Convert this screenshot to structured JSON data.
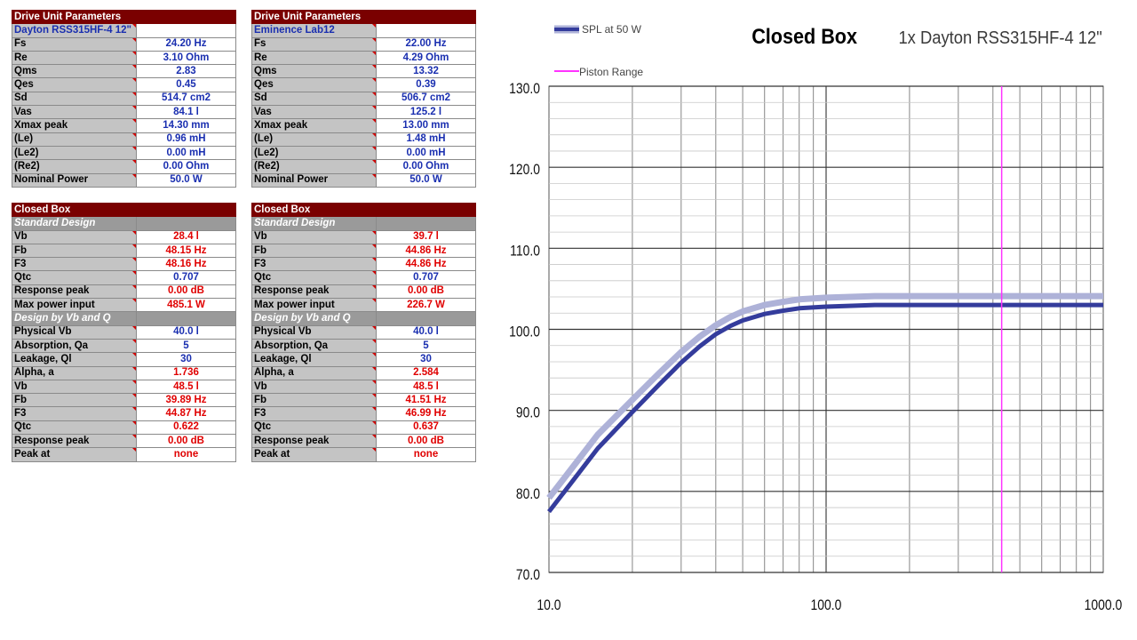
{
  "tables": {
    "du1": {
      "header": "Drive Unit Parameters",
      "name": "Dayton RSS315HF-4 12\"",
      "rows": [
        {
          "label": "Fs",
          "value": "24.20 Hz"
        },
        {
          "label": "Re",
          "value": "3.10 Ohm"
        },
        {
          "label": "Qms",
          "value": "2.83"
        },
        {
          "label": "Qes",
          "value": "0.45"
        },
        {
          "label": "Sd",
          "value": "514.7 cm2"
        },
        {
          "label": "Vas",
          "value": "84.1 l"
        },
        {
          "label": "Xmax peak",
          "value": "14.30 mm"
        },
        {
          "label": "(Le)",
          "value": "0.96 mH"
        },
        {
          "label": "(Le2)",
          "value": "0.00 mH"
        },
        {
          "label": "(Re2)",
          "value": "0.00 Ohm"
        },
        {
          "label": "Nominal Power",
          "value": "50.0 W"
        }
      ]
    },
    "du2": {
      "header": "Drive Unit Parameters",
      "name": "Eminence Lab12",
      "rows": [
        {
          "label": "Fs",
          "value": "22.00 Hz"
        },
        {
          "label": "Re",
          "value": "4.29 Ohm"
        },
        {
          "label": "Qms",
          "value": "13.32"
        },
        {
          "label": "Qes",
          "value": "0.39"
        },
        {
          "label": "Sd",
          "value": "506.7 cm2"
        },
        {
          "label": "Vas",
          "value": "125.2 l"
        },
        {
          "label": "Xmax peak",
          "value": "13.00 mm"
        },
        {
          "label": "(Le)",
          "value": "1.48 mH"
        },
        {
          "label": "(Le2)",
          "value": "0.00 mH"
        },
        {
          "label": "(Re2)",
          "value": "0.00 Ohm"
        },
        {
          "label": "Nominal Power",
          "value": "50.0 W"
        }
      ]
    },
    "cb1": {
      "header": "Closed Box",
      "standard_label": "Standard Design",
      "standard": [
        {
          "label": "Vb",
          "value": "28.4 l",
          "color": "red"
        },
        {
          "label": "Fb",
          "value": "48.15 Hz",
          "color": "red"
        },
        {
          "label": "F3",
          "value": "48.16 Hz",
          "color": "red"
        },
        {
          "label": "Qtc",
          "value": "0.707",
          "color": "blue"
        },
        {
          "label": "Response peak",
          "value": "0.00 dB",
          "color": "red"
        },
        {
          "label": "Max power input",
          "value": "485.1 W",
          "color": "red"
        }
      ],
      "vbq_label": "Design by Vb and Q",
      "vbq": [
        {
          "label": "Physical Vb",
          "value": "40.0 l",
          "color": "blue"
        },
        {
          "label": "Absorption, Qa",
          "value": "5",
          "color": "blue"
        },
        {
          "label": "Leakage, Ql",
          "value": "30",
          "color": "blue"
        },
        {
          "label": "Alpha, a",
          "value": "1.736",
          "color": "red"
        },
        {
          "label": "Vb",
          "value": "48.5 l",
          "color": "red"
        },
        {
          "label": "Fb",
          "value": "39.89 Hz",
          "color": "red"
        },
        {
          "label": "F3",
          "value": "44.87 Hz",
          "color": "red"
        },
        {
          "label": "Qtc",
          "value": "0.622",
          "color": "red"
        },
        {
          "label": "Response peak",
          "value": "0.00 dB",
          "color": "red"
        },
        {
          "label": "Peak at",
          "value": "none",
          "color": "red"
        }
      ]
    },
    "cb2": {
      "header": "Closed Box",
      "standard_label": "Standard Design",
      "standard": [
        {
          "label": "Vb",
          "value": "39.7 l",
          "color": "red"
        },
        {
          "label": "Fb",
          "value": "44.86 Hz",
          "color": "red"
        },
        {
          "label": "F3",
          "value": "44.86 Hz",
          "color": "red"
        },
        {
          "label": "Qtc",
          "value": "0.707",
          "color": "blue"
        },
        {
          "label": "Response peak",
          "value": "0.00 dB",
          "color": "red"
        },
        {
          "label": "Max power input",
          "value": "226.7 W",
          "color": "red"
        }
      ],
      "vbq_label": "Design by Vb and Q",
      "vbq": [
        {
          "label": "Physical Vb",
          "value": "40.0 l",
          "color": "blue"
        },
        {
          "label": "Absorption, Qa",
          "value": "5",
          "color": "blue"
        },
        {
          "label": "Leakage, Ql",
          "value": "30",
          "color": "blue"
        },
        {
          "label": "Alpha, a",
          "value": "2.584",
          "color": "red"
        },
        {
          "label": "Vb",
          "value": "48.5 l",
          "color": "red"
        },
        {
          "label": "Fb",
          "value": "41.51 Hz",
          "color": "red"
        },
        {
          "label": "F3",
          "value": "46.99 Hz",
          "color": "red"
        },
        {
          "label": "Qtc",
          "value": "0.637",
          "color": "red"
        },
        {
          "label": "Response peak",
          "value": "0.00 dB",
          "color": "red"
        },
        {
          "label": "Peak at",
          "value": "none",
          "color": "red"
        }
      ]
    }
  },
  "colors": {
    "header_bg": "#7a0000",
    "label_bg": "#c4c4c4",
    "section_bg": "#9a9a9a",
    "value_blue": "#1a2fb0",
    "value_red": "#e00000",
    "series_main": "#343c9c",
    "series_ghost": "#aeb2d8",
    "piston": "#ff33ff"
  },
  "chart_data": {
    "type": "line",
    "title": "Closed Box",
    "subtitle": "1x Dayton RSS315HF-4 12\"",
    "x_scale": "log",
    "xlim": [
      10,
      1000
    ],
    "ylim": [
      70,
      130
    ],
    "x_ticks": [
      10,
      100,
      1000
    ],
    "x_tick_labels": [
      "10.0",
      "100.0",
      "1000.0"
    ],
    "y_ticks": [
      70,
      80,
      90,
      100,
      110,
      120,
      130
    ],
    "y_tick_labels": [
      "70.0",
      "80.0",
      "90.0",
      "100.0",
      "110.0",
      "120.0",
      "130.0"
    ],
    "grid": true,
    "legend_position": "top-left",
    "legend": [
      {
        "label": "SPL at 50 W",
        "color": "#343c9c"
      },
      {
        "label": "Piston Range",
        "color": "#ff33ff"
      }
    ],
    "series": [
      {
        "name": "SPL at 50 W",
        "color": "#343c9c",
        "x": [
          10,
          12,
          15,
          20,
          25,
          30,
          35,
          40,
          45,
          50,
          60,
          70,
          80,
          100,
          150,
          200,
          300,
          500,
          1000
        ],
        "y": [
          77.5,
          81.0,
          85.3,
          89.8,
          93.2,
          95.9,
          97.9,
          99.4,
          100.4,
          101.1,
          101.9,
          102.3,
          102.6,
          102.8,
          103.0,
          103.0,
          103.0,
          103.0,
          103.0
        ]
      },
      {
        "name": "",
        "color": "#aeb2d8",
        "x": [
          10,
          12,
          15,
          20,
          25,
          30,
          35,
          40,
          45,
          50,
          60,
          70,
          80,
          100,
          150,
          200,
          300,
          500,
          1000
        ],
        "y": [
          79.2,
          82.7,
          87.0,
          91.3,
          94.6,
          97.2,
          99.1,
          100.5,
          101.5,
          102.2,
          103.0,
          103.4,
          103.7,
          103.9,
          104.1,
          104.1,
          104.1,
          104.1,
          104.1
        ]
      }
    ],
    "vertical_marker": {
      "name": "Piston Range",
      "x": 430,
      "color": "#ff33ff"
    }
  }
}
